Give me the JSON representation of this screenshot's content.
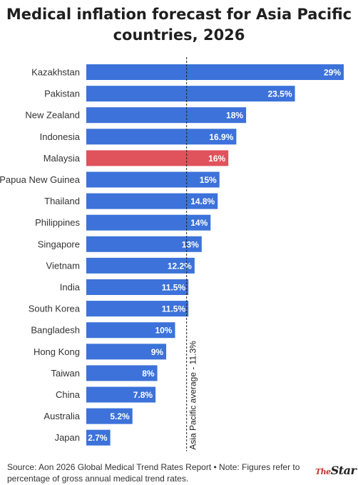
{
  "title": "Medical inflation forecast for Asia Pacific countries, 2026",
  "footer": "Source: Aon 2026 Global Medical Trend Rates Report • Note: Figures refer to percentage of gross annual medical trend rates.",
  "logo": {
    "the": "The",
    "star": "Star"
  },
  "colors": {
    "bar": "#3c72d9",
    "highlight": "#e0525c"
  },
  "chart_data": {
    "type": "bar",
    "orientation": "horizontal",
    "title": "Medical inflation forecast for Asia Pacific countries, 2026",
    "xlim": [
      0,
      29
    ],
    "grid": false,
    "categories": [
      "Kazakhstan",
      "Pakistan",
      "New Zealand",
      "Indonesia",
      "Malaysia",
      "Papua New Guinea",
      "Thailand",
      "Philippines",
      "Singapore",
      "Vietnam",
      "India",
      "South Korea",
      "Bangladesh",
      "Hong Kong",
      "Taiwan",
      "China",
      "Australia",
      "Japan"
    ],
    "values": [
      29,
      23.5,
      18,
      16.9,
      16,
      15,
      14.8,
      14,
      13,
      12.2,
      11.5,
      11.5,
      10,
      9,
      8,
      7.8,
      5.2,
      2.7
    ],
    "value_labels": [
      "29%",
      "23.5%",
      "18%",
      "16.9%",
      "16%",
      "15%",
      "14.8%",
      "14%",
      "13%",
      "12.2%",
      "11.5%",
      "11.5%",
      "10%",
      "9%",
      "8%",
      "7.8%",
      "5.2%",
      "2.7%"
    ],
    "highlight": "Malaysia",
    "reference_line": {
      "value": 11.3,
      "label": "Asia Pacific average - 11.3%"
    }
  }
}
